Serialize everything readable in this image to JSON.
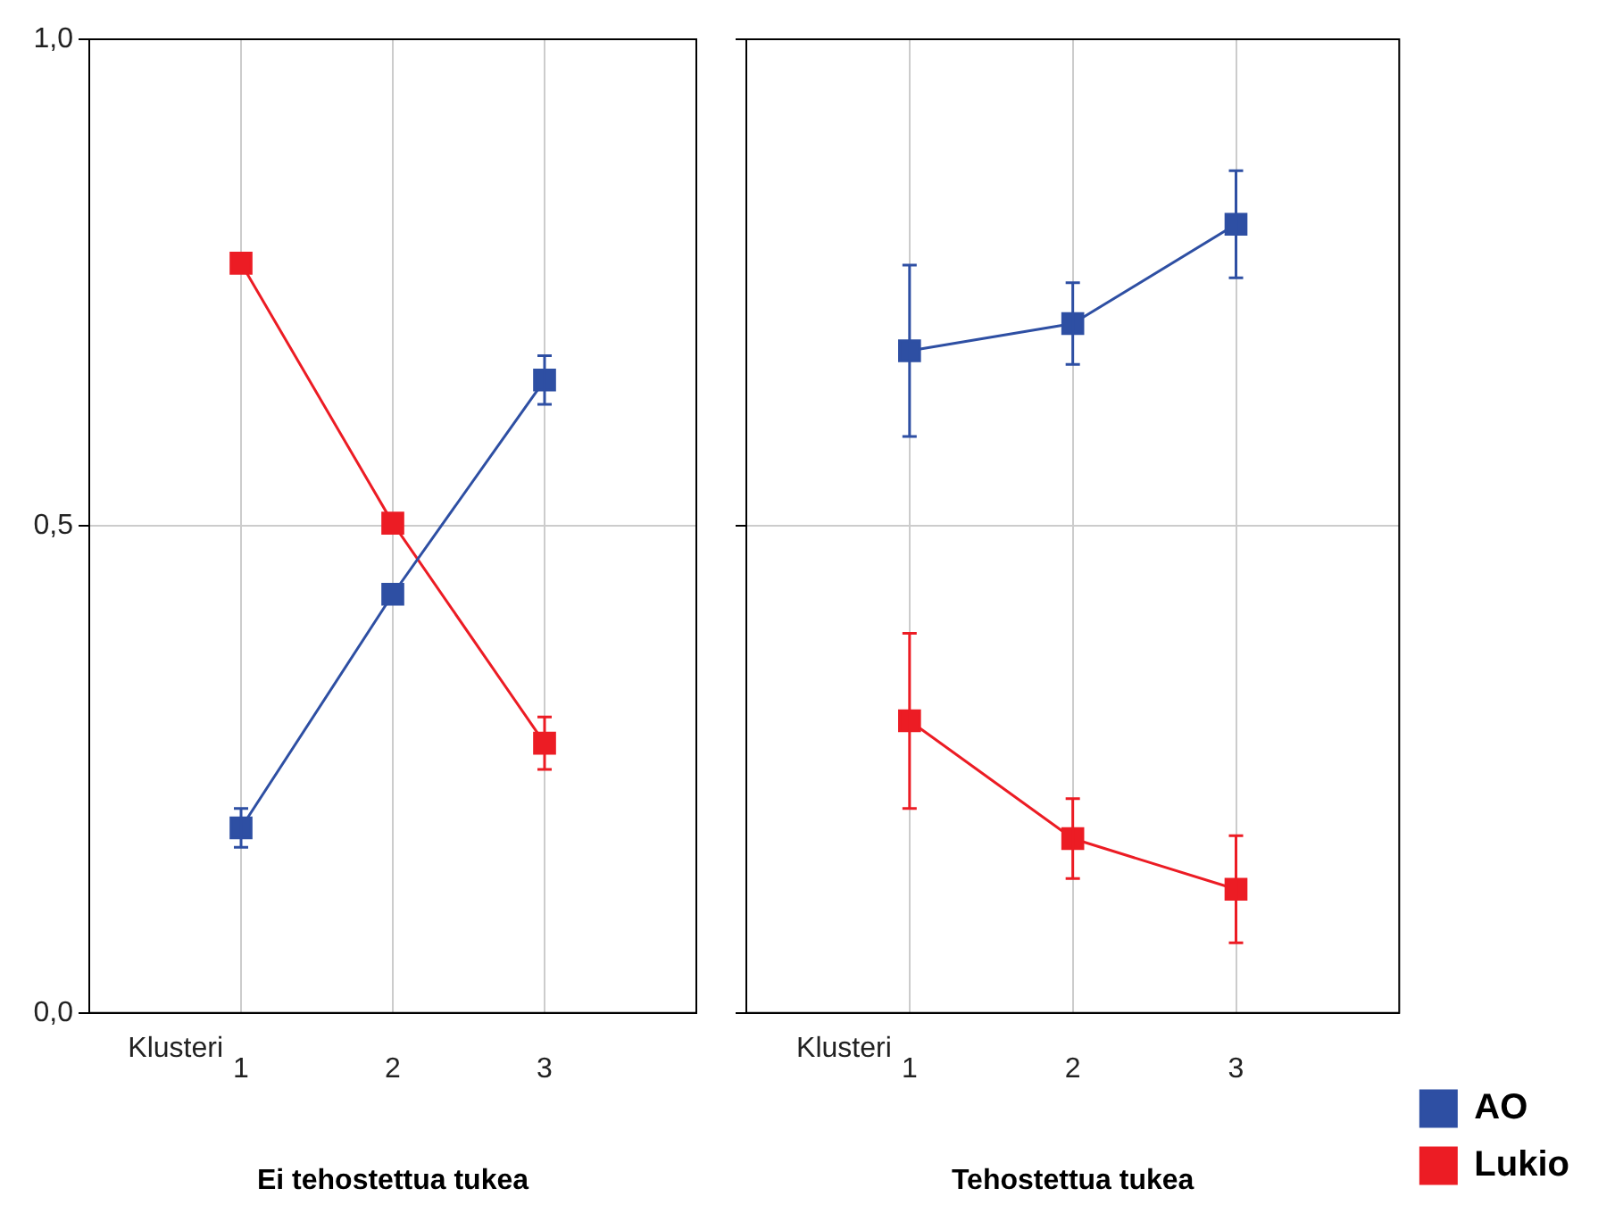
{
  "chart_data": [
    {
      "type": "line",
      "xlabel": "Ei tehostettua tukea",
      "annotations": [
        "Klusteri"
      ],
      "x": [
        1,
        2,
        3
      ],
      "xlim": [
        0,
        4
      ],
      "xticks": [
        1,
        2,
        3
      ],
      "ylim": [
        0,
        1
      ],
      "yticks": [
        {
          "value": 0,
          "label": "0,0"
        },
        {
          "value": 0.5,
          "label": "0,5"
        },
        {
          "value": 1,
          "label": "1,0"
        }
      ],
      "grid": true,
      "legend": false,
      "marker": "square",
      "line_style": "solid",
      "series": [
        {
          "color": "#2e4fa3",
          "values": [
            0.19,
            0.43,
            0.65
          ],
          "errors": [
            0.02,
            null,
            0.025
          ]
        },
        {
          "color": "#ec1c24",
          "values": [
            0.77,
            0.503,
            0.277
          ],
          "errors": [
            null,
            null,
            0.027
          ]
        }
      ]
    },
    {
      "type": "line",
      "xlabel": "Tehostettua tukea",
      "annotations": [
        "Klusteri"
      ],
      "x": [
        1,
        2,
        3
      ],
      "xlim": [
        0,
        4
      ],
      "xticks": [
        1,
        2,
        3
      ],
      "ylim": [
        0,
        1
      ],
      "yticks": [
        0,
        0.5,
        1
      ],
      "tick_labels": "x",
      "grid": true,
      "legend": "bottom right",
      "marker": "square",
      "line_style": "solid",
      "series": [
        {
          "name": "AO",
          "color": "#2e4fa3",
          "values": [
            0.68,
            0.708,
            0.81
          ],
          "errors": [
            0.088,
            0.042,
            0.055
          ]
        },
        {
          "name": "Lukio",
          "color": "#ec1c24",
          "values": [
            0.3,
            0.179,
            0.127
          ],
          "errors": [
            0.09,
            0.041,
            0.055
          ]
        }
      ]
    }
  ]
}
